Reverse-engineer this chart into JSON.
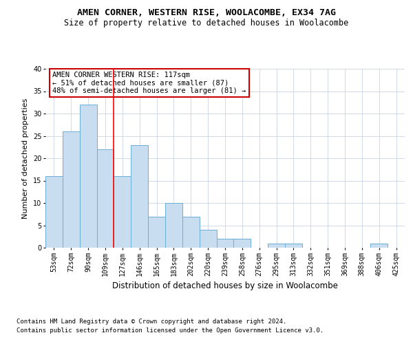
{
  "title": "AMEN CORNER, WESTERN RISE, WOOLACOMBE, EX34 7AG",
  "subtitle": "Size of property relative to detached houses in Woolacombe",
  "xlabel": "Distribution of detached houses by size in Woolacombe",
  "ylabel": "Number of detached properties",
  "categories": [
    "53sqm",
    "72sqm",
    "90sqm",
    "109sqm",
    "127sqm",
    "146sqm",
    "165sqm",
    "183sqm",
    "202sqm",
    "220sqm",
    "239sqm",
    "258sqm",
    "276sqm",
    "295sqm",
    "313sqm",
    "332sqm",
    "351sqm",
    "369sqm",
    "388sqm",
    "406sqm",
    "425sqm"
  ],
  "values": [
    16,
    26,
    32,
    22,
    16,
    23,
    7,
    10,
    7,
    4,
    2,
    2,
    0,
    1,
    1,
    0,
    0,
    0,
    0,
    1,
    0
  ],
  "bar_color": "#c9ddf0",
  "bar_edge_color": "#6aaed6",
  "bar_width": 1.0,
  "red_line_x": 3.5,
  "ylim": [
    0,
    40
  ],
  "yticks": [
    0,
    5,
    10,
    15,
    20,
    25,
    30,
    35,
    40
  ],
  "annotation_title": "AMEN CORNER WESTERN RISE: 117sqm",
  "annotation_line1": "← 51% of detached houses are smaller (87)",
  "annotation_line2": "48% of semi-detached houses are larger (81) →",
  "annotation_box_color": "#ffffff",
  "annotation_box_edge": "#cc0000",
  "footer1": "Contains HM Land Registry data © Crown copyright and database right 2024.",
  "footer2": "Contains public sector information licensed under the Open Government Licence v3.0.",
  "background_color": "#ffffff",
  "grid_color": "#c8d4e3",
  "title_fontsize": 9.5,
  "subtitle_fontsize": 8.5,
  "xlabel_fontsize": 8.5,
  "ylabel_fontsize": 8,
  "tick_fontsize": 7,
  "annotation_fontsize": 7.5,
  "footer_fontsize": 6.5
}
